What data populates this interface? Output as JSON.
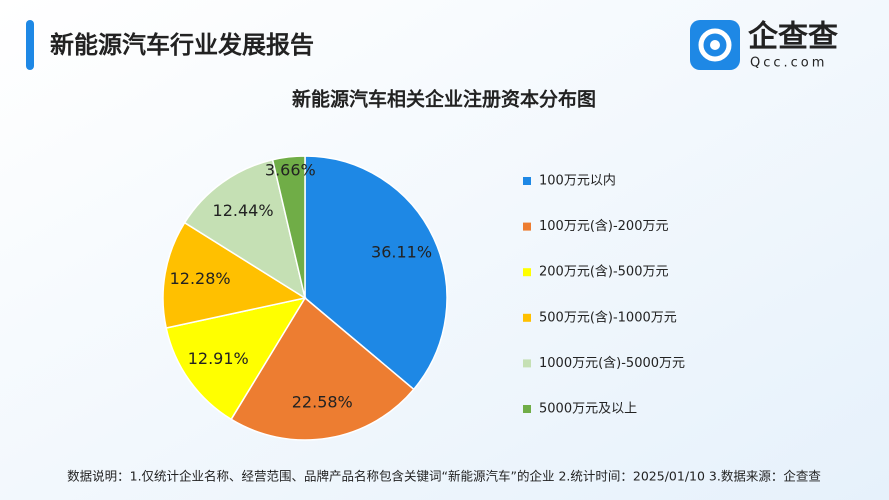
{
  "header": {
    "title": "新能源汽车行业发展报告",
    "logo_name": "企查查",
    "logo_url": "Qcc.com"
  },
  "chart_data": {
    "type": "pie",
    "title": "新能源汽车相关企业注册资本分布图",
    "categories": [
      "100万元以内",
      "100万元(含)-200万元",
      "200万元(含)-500万元",
      "500万元(含)-1000万元",
      "1000万元(含)-5000万元",
      "5000万元及以上"
    ],
    "values": [
      36.11,
      22.58,
      12.91,
      12.28,
      12.44,
      3.66
    ],
    "value_labels": [
      "36.11%",
      "22.58%",
      "12.91%",
      "12.28%",
      "12.44%",
      "3.66%"
    ],
    "colors": [
      "#1e88e5",
      "#ed7d31",
      "#ffff00",
      "#ffc000",
      "#c5e0b4",
      "#70ad47"
    ],
    "legend": "right"
  },
  "footer": {
    "note": "数据说明：1.仅统计企业名称、经营范围、品牌产品名称包含关键词“新能源汽车”的企业 2.统计时间：2025/01/10 3.数据来源：企查查"
  }
}
